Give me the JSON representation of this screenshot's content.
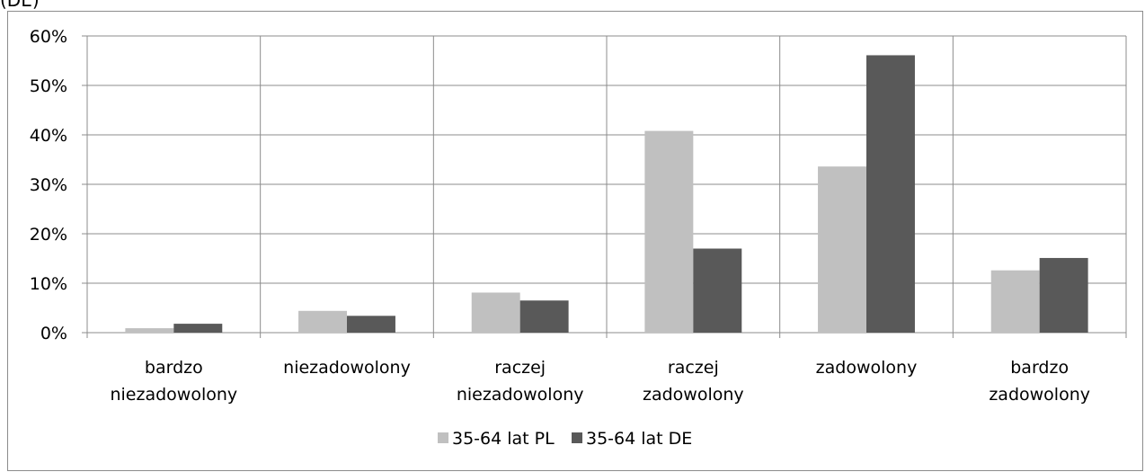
{
  "caption_fragment": "(DE)",
  "chart_data": {
    "type": "bar",
    "categories": [
      [
        "bardzo",
        "niezadowolony"
      ],
      [
        "niezadowolony"
      ],
      [
        "raczej",
        "niezadowolony"
      ],
      [
        "raczej",
        "zadowolony"
      ],
      [
        "zadowolony"
      ],
      [
        "bardzo",
        "zadowolony"
      ]
    ],
    "series": [
      {
        "name": "35-64 lat PL",
        "color": "#c0c0c0",
        "values": [
          0.9,
          4.4,
          8.1,
          40.8,
          33.6,
          12.6
        ]
      },
      {
        "name": "35-64 lat DE",
        "color": "#595959",
        "values": [
          1.8,
          3.4,
          6.5,
          17.0,
          56.1,
          15.1
        ]
      }
    ],
    "yticks": [
      "0%",
      "10%",
      "20%",
      "30%",
      "40%",
      "50%",
      "60%"
    ],
    "ylim": [
      0,
      60
    ],
    "grid": true,
    "legend_position": "bottom",
    "title": "",
    "xlabel": "",
    "ylabel": ""
  }
}
